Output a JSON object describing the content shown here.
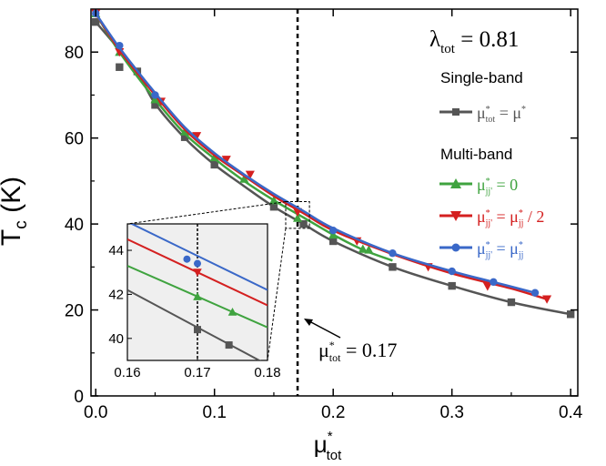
{
  "chart_data": {
    "type": "line",
    "xlabel": "μ*tot",
    "ylabel": "Tc (K)",
    "xlim": [
      0.0,
      0.4
    ],
    "ylim": [
      0,
      90
    ],
    "xticks": [
      "0.0",
      "0.1",
      "0.2",
      "0.3",
      "0.4"
    ],
    "yticks": [
      "0",
      "20",
      "40",
      "60",
      "80"
    ],
    "grid": false,
    "vline": {
      "x": 0.17
    },
    "title": "λtot = 0.81",
    "legend": {
      "groups": [
        {
          "heading": "Single-band",
          "series": [
            "μ*tot = μ*"
          ]
        },
        {
          "heading": "Multi-band",
          "series": [
            "μ*jj' = 0",
            "μ*jj' = μ*jj / 2",
            "μ*jj' = μ*jj"
          ]
        }
      ],
      "placement": "right"
    },
    "annotation": {
      "text": "μ*tot = 0.17",
      "points_to": 0.17
    },
    "series": [
      {
        "name": "μ*tot = μ*",
        "color": "#555555",
        "marker": "square",
        "points": [
          [
            0.0,
            87.0
          ],
          [
            0.02,
            80.5
          ],
          [
            0.035,
            75.5
          ],
          [
            0.05,
            68.0
          ],
          [
            0.075,
            60.0
          ],
          [
            0.1,
            53.8
          ],
          [
            0.125,
            48.8
          ],
          [
            0.15,
            44.0
          ],
          [
            0.175,
            40.0
          ],
          [
            0.2,
            36.0
          ],
          [
            0.25,
            30.0
          ],
          [
            0.3,
            25.6
          ],
          [
            0.35,
            21.8
          ],
          [
            0.4,
            19.0
          ]
        ],
        "markers": [
          [
            0.0,
            87.0
          ],
          [
            0.02,
            76.5
          ],
          [
            0.035,
            75.5
          ],
          [
            0.05,
            67.7
          ],
          [
            0.075,
            60.2
          ],
          [
            0.1,
            53.8
          ],
          [
            0.15,
            44.0
          ],
          [
            0.175,
            40.0
          ],
          [
            0.2,
            36.0
          ],
          [
            0.25,
            30.0
          ],
          [
            0.3,
            25.6
          ],
          [
            0.35,
            21.8
          ],
          [
            0.4,
            19.0
          ]
        ]
      },
      {
        "name": "μ*jj' = 0",
        "color": "#3fa33f",
        "marker": "triangle-up",
        "points": [
          [
            0.0,
            89.0
          ],
          [
            0.02,
            80.0
          ],
          [
            0.05,
            69.0
          ],
          [
            0.075,
            61.0
          ],
          [
            0.1,
            55.2
          ],
          [
            0.125,
            50.0
          ],
          [
            0.15,
            45.5
          ],
          [
            0.175,
            41.5
          ],
          [
            0.2,
            37.5
          ],
          [
            0.225,
            34.0
          ],
          [
            0.25,
            31.5
          ]
        ],
        "markers": [
          [
            0.0,
            89.0
          ],
          [
            0.02,
            80.0
          ],
          [
            0.05,
            69.0
          ],
          [
            0.075,
            61.5
          ],
          [
            0.1,
            55.5
          ],
          [
            0.125,
            50.5
          ],
          [
            0.15,
            45.5
          ],
          [
            0.17,
            41.4
          ],
          [
            0.2,
            37.5
          ],
          [
            0.225,
            34.2
          ],
          [
            0.23,
            34.0
          ]
        ]
      },
      {
        "name": "μ*jj' = μ*jj / 2",
        "color": "#d42020",
        "marker": "triangle-down",
        "points": [
          [
            0.0,
            89.0
          ],
          [
            0.02,
            80.5
          ],
          [
            0.05,
            70.0
          ],
          [
            0.075,
            62.0
          ],
          [
            0.1,
            56.0
          ],
          [
            0.125,
            51.2
          ],
          [
            0.15,
            46.5
          ],
          [
            0.175,
            42.5
          ],
          [
            0.2,
            38.5
          ],
          [
            0.25,
            33.0
          ],
          [
            0.3,
            28.5
          ],
          [
            0.35,
            25.0
          ],
          [
            0.38,
            22.5
          ]
        ],
        "markers": [
          [
            0.0,
            89.0
          ],
          [
            0.02,
            80.0
          ],
          [
            0.055,
            68.5
          ],
          [
            0.085,
            60.5
          ],
          [
            0.11,
            55.0
          ],
          [
            0.13,
            51.5
          ],
          [
            0.17,
            42.8
          ],
          [
            0.22,
            36.0
          ],
          [
            0.28,
            30.0
          ],
          [
            0.33,
            25.5
          ],
          [
            0.38,
            22.5
          ]
        ]
      },
      {
        "name": "μ*jj' = μ*jj",
        "color": "#3a68c8",
        "marker": "circle",
        "points": [
          [
            0.0,
            89.0
          ],
          [
            0.02,
            81.0
          ],
          [
            0.05,
            70.5
          ],
          [
            0.075,
            62.5
          ],
          [
            0.1,
            56.5
          ],
          [
            0.125,
            51.5
          ],
          [
            0.15,
            47.0
          ],
          [
            0.175,
            43.0
          ],
          [
            0.2,
            39.0
          ],
          [
            0.25,
            33.2
          ],
          [
            0.3,
            29.0
          ],
          [
            0.335,
            26.5
          ],
          [
            0.37,
            24.0
          ]
        ],
        "markers": [
          [
            0.0,
            89.0
          ],
          [
            0.02,
            81.5
          ],
          [
            0.05,
            70.0
          ],
          [
            0.2,
            38.5
          ],
          [
            0.25,
            33.2
          ],
          [
            0.3,
            29.0
          ],
          [
            0.335,
            26.5
          ],
          [
            0.37,
            24.0
          ]
        ]
      }
    ],
    "inset": {
      "xlim": [
        0.16,
        0.18
      ],
      "ylim": [
        39,
        45.2
      ],
      "xticks": [
        "0.16",
        "0.17",
        "0.18"
      ],
      "yticks": [
        "40",
        "42",
        "44"
      ],
      "vline": {
        "x": 0.17
      },
      "series": [
        {
          "name": "μ*tot = μ*",
          "points": [
            [
              0.16,
              42.2
            ],
            [
              0.18,
              38.8
            ]
          ],
          "markers": [
            [
              0.17,
              40.4
            ],
            [
              0.1745,
              39.7
            ]
          ]
        },
        {
          "name": "μ*jj' = 0",
          "points": [
            [
              0.16,
              43.3
            ],
            [
              0.18,
              40.5
            ]
          ],
          "markers": [
            [
              0.17,
              41.9
            ],
            [
              0.175,
              41.2
            ]
          ]
        },
        {
          "name": "μ*jj' = μ*jj / 2",
          "points": [
            [
              0.16,
              44.5
            ],
            [
              0.18,
              41.5
            ]
          ],
          "markers": [
            [
              0.17,
              43.0
            ]
          ]
        },
        {
          "name": "μ*jj' = μ*jj",
          "points": [
            [
              0.16,
              45.3
            ],
            [
              0.18,
              42.2
            ]
          ],
          "markers": [
            [
              0.1685,
              43.6
            ],
            [
              0.17,
              43.4
            ]
          ]
        }
      ]
    }
  }
}
